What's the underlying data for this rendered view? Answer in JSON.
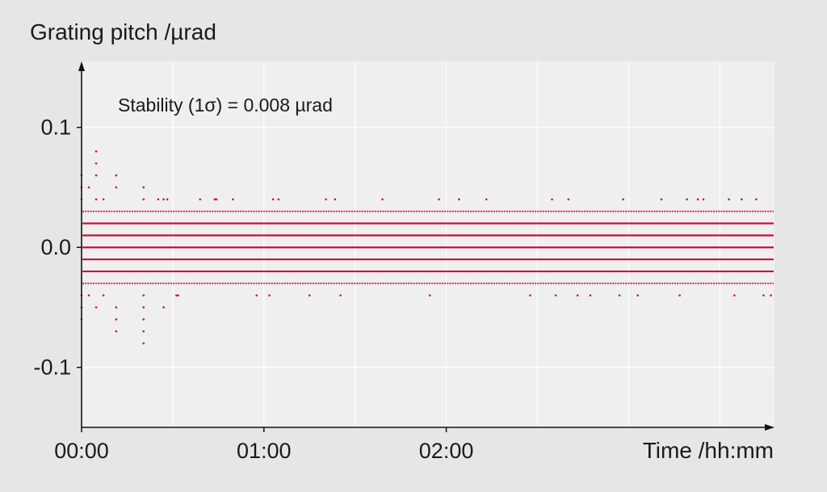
{
  "chart_data": {
    "type": "scatter",
    "title": "",
    "ylabel": "Grating pitch /µrad",
    "xlabel": "Time /hh:mm",
    "annotation": "Stability (1σ) = 0.008 µrad",
    "xlim": [
      0,
      3.8
    ],
    "ylim": [
      -0.15,
      0.155
    ],
    "x_ticks": [
      {
        "value": 0,
        "label": "00:00"
      },
      {
        "value": 1,
        "label": "01:00"
      },
      {
        "value": 2,
        "label": "02:00"
      }
    ],
    "y_ticks": [
      {
        "value": 0.1,
        "label": "0.1"
      },
      {
        "value": 0.0,
        "label": "0.0"
      },
      {
        "value": -0.1,
        "label": "-0.1"
      }
    ],
    "grid": true,
    "series_color": "#c8103e",
    "background": "#efefef",
    "quantization_levels": [
      -0.02,
      -0.01,
      0.0,
      0.01,
      0.02
    ],
    "sparse_levels": [
      -0.03,
      0.03
    ],
    "outliers": [
      {
        "x": 0.0,
        "y": 0.06
      },
      {
        "x": 0.0,
        "y": 0.05
      },
      {
        "x": 0.0,
        "y": 0.04
      },
      {
        "x": 0.0,
        "y": -0.04
      },
      {
        "x": 0.0,
        "y": -0.05
      },
      {
        "x": 0.0,
        "y": -0.06
      },
      {
        "x": 0.04,
        "y": 0.05
      },
      {
        "x": 0.04,
        "y": -0.04
      },
      {
        "x": 0.08,
        "y": 0.08
      },
      {
        "x": 0.08,
        "y": 0.07
      },
      {
        "x": 0.08,
        "y": 0.06
      },
      {
        "x": 0.08,
        "y": 0.04
      },
      {
        "x": 0.08,
        "y": -0.05
      },
      {
        "x": 0.12,
        "y": 0.04
      },
      {
        "x": 0.12,
        "y": -0.04
      },
      {
        "x": 0.19,
        "y": 0.06
      },
      {
        "x": 0.19,
        "y": 0.05
      },
      {
        "x": 0.19,
        "y": -0.05
      },
      {
        "x": 0.19,
        "y": -0.06
      },
      {
        "x": 0.19,
        "y": -0.07
      },
      {
        "x": 0.34,
        "y": 0.05
      },
      {
        "x": 0.34,
        "y": 0.04
      },
      {
        "x": 0.34,
        "y": -0.04
      },
      {
        "x": 0.34,
        "y": -0.05
      },
      {
        "x": 0.34,
        "y": -0.06
      },
      {
        "x": 0.34,
        "y": -0.07
      },
      {
        "x": 0.34,
        "y": -0.08
      },
      {
        "x": 0.42,
        "y": 0.04
      },
      {
        "x": 0.45,
        "y": 0.04
      },
      {
        "x": 0.47,
        "y": 0.04
      },
      {
        "x": 0.45,
        "y": -0.05
      },
      {
        "x": 0.52,
        "y": -0.04
      },
      {
        "x": 0.53,
        "y": -0.04
      },
      {
        "x": 0.65,
        "y": 0.04
      },
      {
        "x": 0.73,
        "y": 0.04
      },
      {
        "x": 0.74,
        "y": 0.04
      },
      {
        "x": 0.83,
        "y": 0.04
      },
      {
        "x": 0.96,
        "y": -0.04
      },
      {
        "x": 1.03,
        "y": -0.04
      },
      {
        "x": 1.05,
        "y": 0.04
      },
      {
        "x": 1.08,
        "y": 0.04
      },
      {
        "x": 1.25,
        "y": -0.04
      },
      {
        "x": 1.34,
        "y": 0.04
      },
      {
        "x": 1.39,
        "y": 0.04
      },
      {
        "x": 1.42,
        "y": -0.04
      },
      {
        "x": 1.65,
        "y": 0.04
      },
      {
        "x": 1.91,
        "y": -0.04
      },
      {
        "x": 1.96,
        "y": 0.04
      },
      {
        "x": 2.07,
        "y": 0.04
      },
      {
        "x": 2.22,
        "y": 0.04
      },
      {
        "x": 2.46,
        "y": -0.04
      },
      {
        "x": 2.58,
        "y": 0.04
      },
      {
        "x": 2.6,
        "y": -0.04
      },
      {
        "x": 2.67,
        "y": 0.04
      },
      {
        "x": 2.72,
        "y": -0.04
      },
      {
        "x": 2.79,
        "y": -0.04
      },
      {
        "x": 2.95,
        "y": -0.04
      },
      {
        "x": 2.97,
        "y": 0.04
      },
      {
        "x": 3.05,
        "y": -0.04
      },
      {
        "x": 3.18,
        "y": 0.04
      },
      {
        "x": 3.28,
        "y": -0.04
      },
      {
        "x": 3.32,
        "y": 0.04
      },
      {
        "x": 3.38,
        "y": 0.04
      },
      {
        "x": 3.41,
        "y": 0.04
      },
      {
        "x": 3.55,
        "y": 0.04
      },
      {
        "x": 3.58,
        "y": -0.04
      },
      {
        "x": 3.62,
        "y": 0.04
      },
      {
        "x": 3.7,
        "y": 0.04
      },
      {
        "x": 3.74,
        "y": -0.04
      },
      {
        "x": 3.78,
        "y": -0.04
      }
    ]
  }
}
